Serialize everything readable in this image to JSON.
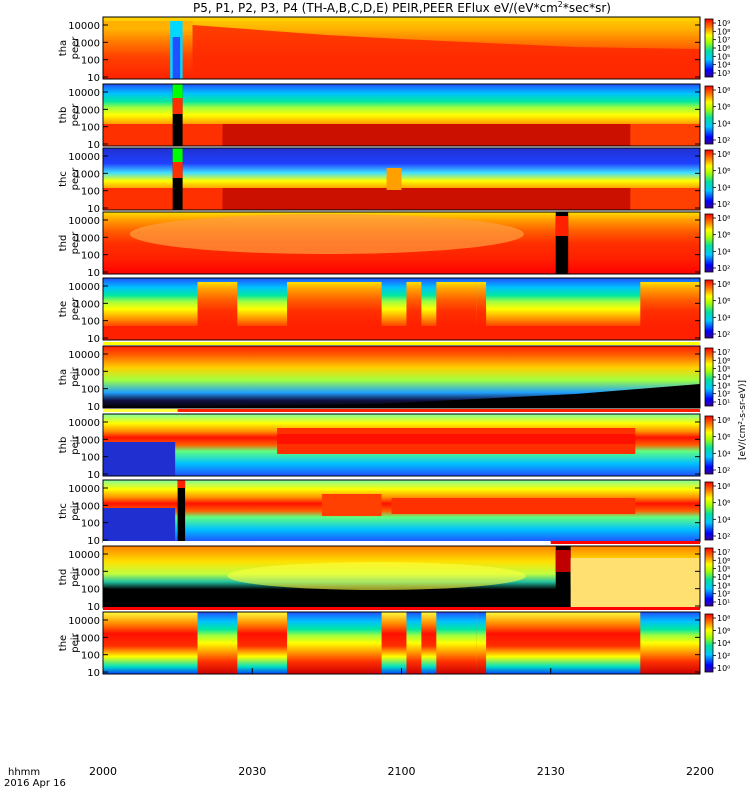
{
  "chart_data": {
    "type": "heatmap",
    "title": "P5, P1, P2, P3, P4 (TH-A,B,C,D,E) PEIR,PEER EFlux eV/(eV*cm²*sec*sr)",
    "title_main": "P5, P1, P2, P3, P4 (TH-A,B,C,D,E) PEIR,PEER EFlux eV/(eV*cm",
    "title_sup": "2",
    "title_tail": "*sec*sr)",
    "x_axis": {
      "label_line1": "hhmm",
      "label_line2": "2016 Apr 16",
      "ticks": [
        "2000",
        "2030",
        "2100",
        "2130",
        "2200"
      ],
      "range_minutes": [
        0,
        120
      ]
    },
    "y_ticks": [
      "10",
      "100",
      "1000",
      "10000"
    ],
    "colorbar_label": "[eV/(cm²-s-sr-eV)]",
    "panels": [
      {
        "name": "tha peer",
        "probe": "tha",
        "instrument": "peer",
        "label_top": "tha",
        "label_bottom": "peer",
        "cbar_ticks": [
          "10⁹",
          "10⁸",
          "10⁷",
          "10⁶",
          "10⁵",
          "10⁴",
          "10³"
        ],
        "style": "tha_peer"
      },
      {
        "name": "thb peer",
        "probe": "thb",
        "instrument": "peer",
        "label_top": "thb",
        "label_bottom": "peer",
        "cbar_ticks": [
          "10⁸",
          "10⁶",
          "10⁴",
          "10²"
        ],
        "style": "thb_peer"
      },
      {
        "name": "thc peer",
        "probe": "thc",
        "instrument": "peer",
        "label_top": "thc",
        "label_bottom": "peer",
        "cbar_ticks": [
          "10⁸",
          "10⁶",
          "10⁴",
          "10²"
        ],
        "style": "thc_peer"
      },
      {
        "name": "thd peer",
        "probe": "thd",
        "instrument": "peer",
        "label_top": "thd",
        "label_bottom": "peer",
        "cbar_ticks": [
          "10⁸",
          "10⁶",
          "10⁴",
          "10²"
        ],
        "style": "thd_peer"
      },
      {
        "name": "the peer",
        "probe": "the",
        "instrument": "peer",
        "label_top": "the",
        "label_bottom": "peer",
        "cbar_ticks": [
          "10⁸",
          "10⁶",
          "10⁴",
          "10²"
        ],
        "style": "the_peer"
      },
      {
        "name": "tha peir",
        "probe": "tha",
        "instrument": "peir",
        "label_top": "tha",
        "label_bottom": "peir",
        "cbar_ticks": [
          "10⁷",
          "10⁶",
          "10⁵",
          "10⁴",
          "10³",
          "10²",
          "10¹"
        ],
        "style": "tha_peir"
      },
      {
        "name": "thb peir",
        "probe": "thb",
        "instrument": "peir",
        "label_top": "thb",
        "label_bottom": "peir",
        "cbar_ticks": [
          "10⁸",
          "10⁶",
          "10⁴",
          "10²"
        ],
        "style": "thb_peir"
      },
      {
        "name": "thc peir",
        "probe": "thc",
        "instrument": "peir",
        "label_top": "thc",
        "label_bottom": "peir",
        "cbar_ticks": [
          "10⁸",
          "10⁶",
          "10⁴",
          "10²"
        ],
        "style": "thc_peir"
      },
      {
        "name": "thd peir",
        "probe": "thd",
        "instrument": "peir",
        "label_top": "thd",
        "label_bottom": "peir",
        "cbar_ticks": [
          "10⁷",
          "10⁶",
          "10⁵",
          "10⁴",
          "10³",
          "10²",
          "10¹"
        ],
        "style": "thd_peir"
      },
      {
        "name": "the peir",
        "probe": "the",
        "instrument": "peir",
        "label_top": "the",
        "label_bottom": "peir",
        "cbar_ticks": [
          "10⁸",
          "10⁶",
          "10⁴",
          "10²",
          "10⁰"
        ],
        "style": "the_peir"
      }
    ],
    "grid": false,
    "legend": "colorbar-right"
  }
}
